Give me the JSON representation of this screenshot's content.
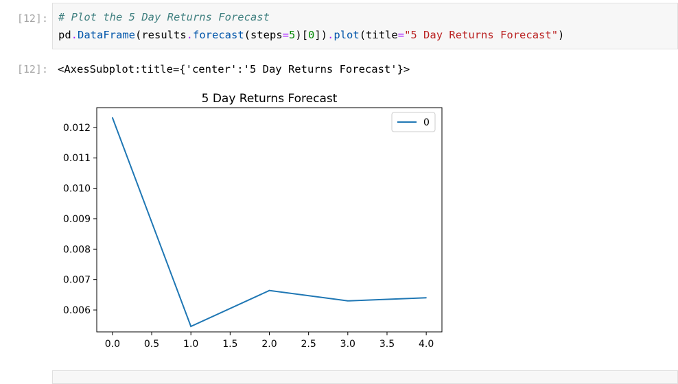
{
  "input_cell": {
    "prompt": "[12]:",
    "comment": "# Plot the 5 Day Returns Forecast",
    "code": {
      "t1": "pd",
      "t2": ".",
      "t3": "DataFrame",
      "t4": "(results",
      "t5": ".",
      "t6": "forecast",
      "t7": "(steps",
      "t8": "=",
      "t9": "5",
      "t10": ")[",
      "t11": "0",
      "t12": "])",
      "t13": ".",
      "t14": "plot",
      "t15": "(title",
      "t16": "=",
      "t17": "\"5 Day Returns Forecast\"",
      "t18": ")"
    }
  },
  "output_cell": {
    "prompt": "[12]:",
    "text": "<AxesSubplot:title={'center':'5 Day Returns Forecast'}>"
  },
  "chart_data": {
    "type": "line",
    "title": "5 Day Returns Forecast",
    "x": [
      0.0,
      1.0,
      2.0,
      3.0,
      4.0
    ],
    "series": [
      {
        "name": "0",
        "values": [
          0.01232,
          0.00546,
          0.00664,
          0.0063,
          0.0064
        ],
        "color": "#1f77b4"
      }
    ],
    "xlim": [
      -0.2,
      4.2
    ],
    "ylim": [
      0.00528,
      0.01265
    ],
    "xticks": [
      "0.0",
      "0.5",
      "1.0",
      "1.5",
      "2.0",
      "2.5",
      "3.0",
      "3.5",
      "4.0"
    ],
    "yticks": [
      "0.006",
      "0.007",
      "0.008",
      "0.009",
      "0.010",
      "0.011",
      "0.012"
    ],
    "legend": "top-right",
    "grid": false
  }
}
